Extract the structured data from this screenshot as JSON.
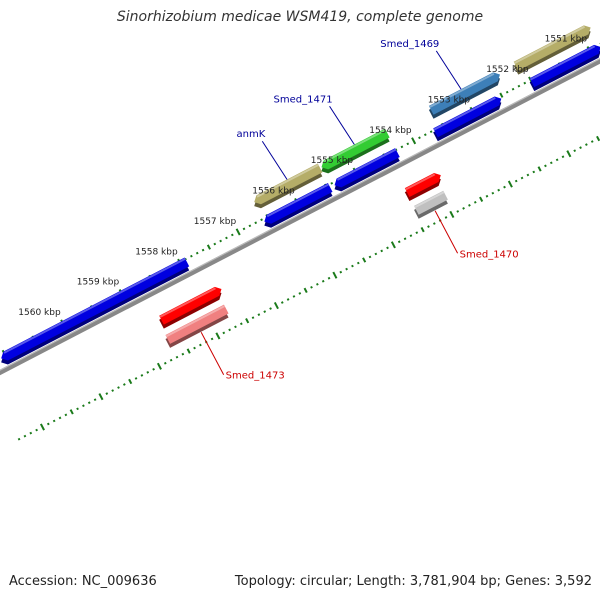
{
  "title": "Sinorhizobium medicae WSM419, complete genome",
  "footer": {
    "accession": "Accession: NC_009636",
    "stats": "Topology: circular; Length: 3,781,904 bp; Genes: 3,592"
  },
  "colors": {
    "backbone": "#888888",
    "tick": "#1a7a1a",
    "label_forward": "#000099",
    "label_reverse": "#cc0000"
  },
  "scale": {
    "unit": "kbp",
    "ticks": [
      {
        "kbp": 1551,
        "label": "1551 kbp"
      },
      {
        "kbp": 1552,
        "label": "1552 kbp"
      },
      {
        "kbp": 1553,
        "label": "1553 kbp"
      },
      {
        "kbp": 1554,
        "label": "1554 kbp"
      },
      {
        "kbp": 1555,
        "label": "1555 kbp"
      },
      {
        "kbp": 1556,
        "label": "1556 kbp"
      },
      {
        "kbp": 1557,
        "label": "1557 kbp"
      },
      {
        "kbp": 1558,
        "label": "1558 kbp"
      },
      {
        "kbp": 1559,
        "label": "1559 kbp"
      },
      {
        "kbp": 1560,
        "label": "1560 kbp"
      }
    ]
  },
  "features": [
    {
      "id": "smed-1469",
      "track": "forward-gene",
      "start": 1552.45,
      "end": 1553.55,
      "strand": "reverse",
      "color": "#3d7fb8",
      "label": "Smed_1469"
    },
    {
      "id": "smed-1469-cds",
      "track": "forward-cds",
      "start": 1552.6,
      "end": 1553.65,
      "strand": "reverse",
      "color": "#0000e0"
    },
    {
      "id": "olive-top",
      "track": "forward-gene",
      "start": 1550.9,
      "end": 1552.1,
      "strand": "reverse",
      "color": "#b5ad68"
    },
    {
      "id": "blue-top",
      "track": "forward-cds",
      "start": 1550.9,
      "end": 1552.0,
      "strand": "reverse",
      "color": "#0000e0"
    },
    {
      "id": "smed-1471",
      "track": "forward-gene",
      "start": 1554.3,
      "end": 1555.35,
      "strand": "forward",
      "color": "#33cc33",
      "label": "Smed_1471"
    },
    {
      "id": "smed-1471-cds",
      "track": "forward-cds",
      "start": 1554.3,
      "end": 1555.3,
      "strand": "forward",
      "color": "#0000e0"
    },
    {
      "id": "anmk",
      "track": "forward-gene",
      "start": 1555.45,
      "end": 1556.5,
      "strand": "forward",
      "color": "#b5ad68",
      "label": "anmK"
    },
    {
      "id": "anmk-cds",
      "track": "forward-cds",
      "start": 1555.45,
      "end": 1556.5,
      "strand": "forward",
      "color": "#0000e0"
    },
    {
      "id": "blue-long",
      "track": "forward-cds",
      "start": 1557.9,
      "end": 1561.0,
      "strand": "forward",
      "color": "#0000e0"
    },
    {
      "id": "smed-1470-cds",
      "track": "reverse-cds",
      "start": 1553.95,
      "end": 1554.45,
      "strand": "reverse",
      "color": "#ff0000"
    },
    {
      "id": "smed-1470",
      "track": "reverse-gene",
      "start": 1553.95,
      "end": 1554.45,
      "strand": "none",
      "color": "#c0c0c0",
      "label": "Smed_1470"
    },
    {
      "id": "smed-1473-cds",
      "track": "reverse-cds",
      "start": 1557.7,
      "end": 1558.65,
      "strand": "reverse",
      "color": "#ff0000"
    },
    {
      "id": "smed-1473",
      "track": "reverse-gene",
      "start": 1557.7,
      "end": 1558.7,
      "strand": "none",
      "color": "#f08080",
      "label": "Smed_1473"
    }
  ]
}
